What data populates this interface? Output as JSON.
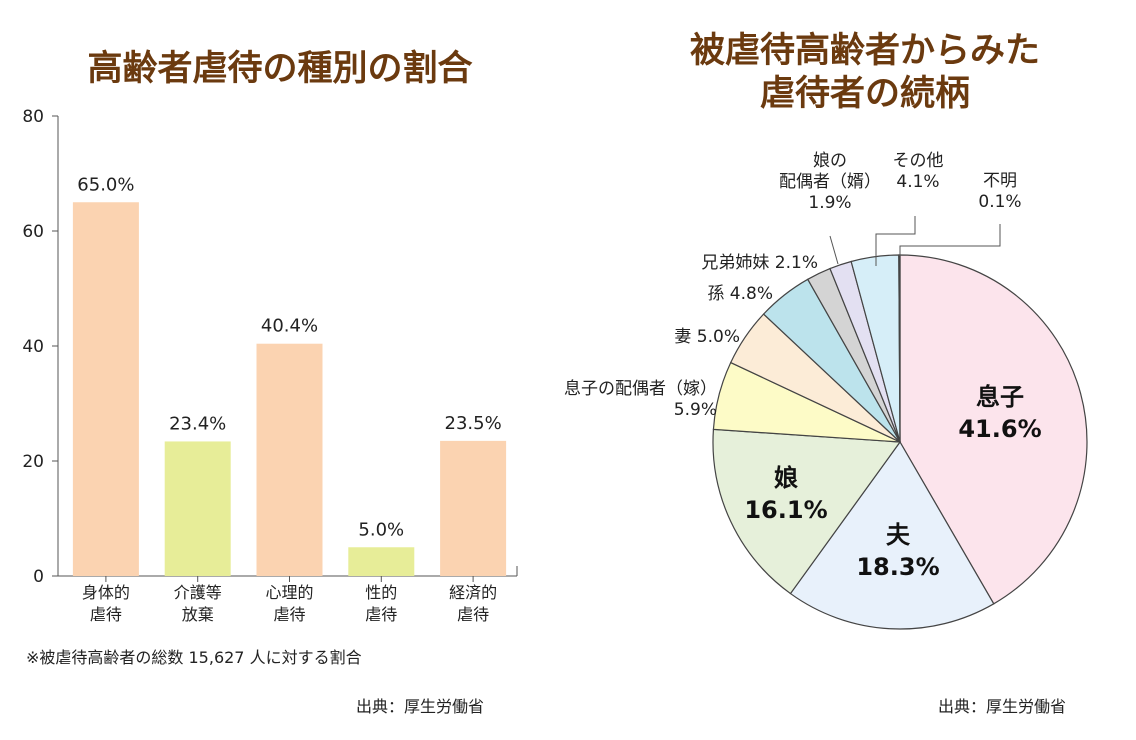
{
  "chart_data": [
    {
      "type": "bar",
      "title": "高齢者虐待の種別の割合",
      "categories": [
        [
          "身体的",
          "虐待"
        ],
        [
          "介護等",
          "放棄"
        ],
        [
          "心理的",
          "虐待"
        ],
        [
          "性的",
          "虐待"
        ],
        [
          "経済的",
          "虐待"
        ]
      ],
      "values": [
        65.0,
        23.4,
        40.4,
        5.0,
        23.5
      ],
      "value_labels": [
        "65.0%",
        "23.4%",
        "40.4%",
        "5.0%",
        "23.5%"
      ],
      "colors": [
        "#fbd3b1",
        "#e7ed98",
        "#fbd3b1",
        "#e7ed98",
        "#fbd3b1"
      ],
      "ylim": [
        0,
        80
      ],
      "yticks": [
        0,
        20,
        40,
        60,
        80
      ],
      "note": "※被虐待高齢者の総数 15,627 人に対する割合",
      "source": "出典：厚生労働省"
    },
    {
      "type": "pie",
      "title": [
        "被虐待高齢者からみた",
        "虐待者の続柄"
      ],
      "slices": [
        {
          "label": [
            "息子",
            "41.6%"
          ],
          "value": 41.6,
          "color": "#fce4ec",
          "inside": true
        },
        {
          "label": [
            "夫",
            "18.3%"
          ],
          "value": 18.3,
          "color": "#e8f1fb",
          "inside": true
        },
        {
          "label": [
            "娘",
            "16.1%"
          ],
          "value": 16.1,
          "color": "#e6f0da",
          "inside": true
        },
        {
          "label": [
            "息子の配偶者（嫁）",
            "5.9%"
          ],
          "value": 5.9,
          "color": "#fdfbc7",
          "inside": false
        },
        {
          "label": [
            "妻 5.0%"
          ],
          "value": 5.0,
          "color": "#fcecd7",
          "inside": false
        },
        {
          "label": [
            "孫 4.8%"
          ],
          "value": 4.8,
          "color": "#bce3ec",
          "inside": false
        },
        {
          "label": [
            "兄弟姉妹 2.1%"
          ],
          "value": 2.1,
          "color": "#d4d4d4",
          "inside": false
        },
        {
          "label": [
            "娘の",
            "配偶者（婿）",
            "1.9%"
          ],
          "value": 1.9,
          "color": "#e3e0f2",
          "inside": false
        },
        {
          "label": [
            "その他",
            "4.1%"
          ],
          "value": 4.1,
          "color": "#d6eef8",
          "inside": false
        },
        {
          "label": [
            "不明",
            "0.1%"
          ],
          "value": 0.1,
          "color": "#ffffff",
          "inside": false
        }
      ],
      "source": "出典：厚生労働省"
    }
  ]
}
